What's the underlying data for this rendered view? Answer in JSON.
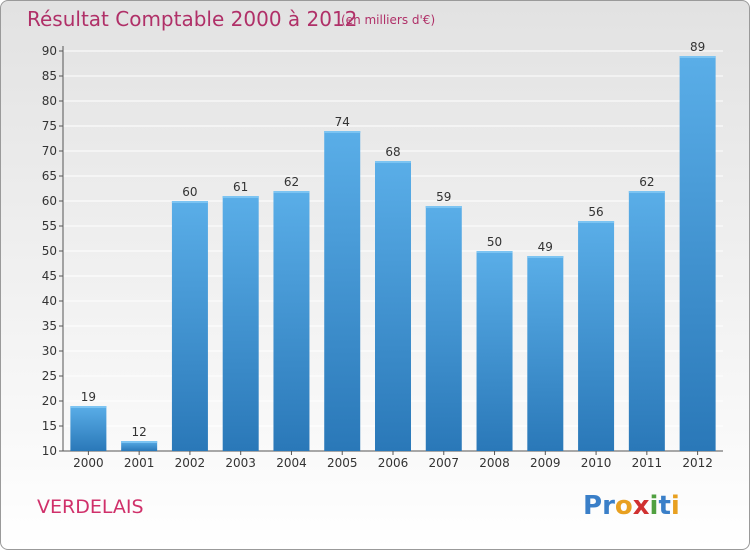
{
  "chart_data": {
    "type": "bar",
    "title": "Résultat Comptable 2000 à 2012",
    "subtitle": "(en milliers d'€)",
    "categories": [
      "2000",
      "2001",
      "2002",
      "2003",
      "2004",
      "2005",
      "2006",
      "2007",
      "2008",
      "2009",
      "2010",
      "2011",
      "2012"
    ],
    "values": [
      19,
      12,
      60,
      61,
      62,
      74,
      68,
      59,
      50,
      49,
      56,
      62,
      89
    ],
    "ylim": [
      10,
      90
    ],
    "yticks": [
      10,
      15,
      20,
      25,
      30,
      35,
      40,
      45,
      50,
      55,
      60,
      65,
      70,
      75,
      80,
      85,
      90
    ],
    "xlabel": "",
    "ylabel": "",
    "grid": true
  },
  "commune": "VERDELAIS",
  "logo": {
    "text": "Proxiti",
    "letters": [
      {
        "ch": "P",
        "color": "#3a7fc8"
      },
      {
        "ch": "r",
        "color": "#3a7fc8"
      },
      {
        "ch": "o",
        "color": "#e8a020"
      },
      {
        "ch": "x",
        "color": "#d03030"
      },
      {
        "ch": "i",
        "color": "#50a040"
      },
      {
        "ch": "t",
        "color": "#3a7fc8"
      },
      {
        "ch": "i",
        "color": "#e8a020"
      }
    ]
  },
  "colors": {
    "bar_top": "#5aaee8",
    "bar_bottom": "#2a78b8",
    "title": "#b03068"
  }
}
